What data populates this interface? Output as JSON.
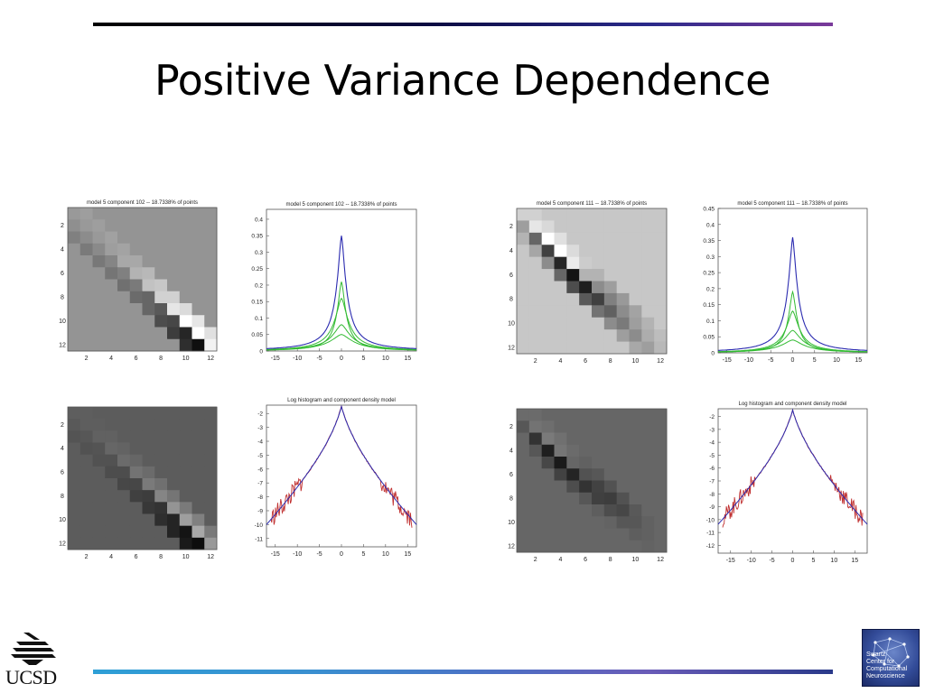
{
  "slide": {
    "title": "Positive Variance Dependence"
  },
  "panels": [
    {
      "matrix": {
        "title": "model 5 component 102 -- 18.7338% of points",
        "ticks": [
          "2",
          "4",
          "6",
          "8",
          "10",
          "12"
        ],
        "background": 0.58,
        "diagonal_pattern": [
          {
            "offset": -2,
            "levels": [
              0.5,
              0.48,
              0.47,
              0.46,
              0.44,
              0.42,
              0.4,
              0.3,
              0.24,
              0.18,
              0.1,
              0.05
            ]
          },
          {
            "offset": -1,
            "levels": [
              0.56,
              0.55,
              0.54,
              0.52,
              0.5,
              0.48,
              0.4,
              0.35,
              0.28,
              0.15,
              0.06,
              0.3
            ]
          },
          {
            "offset": 0,
            "levels": [
              0.6,
              0.6,
              0.6,
              0.62,
              0.66,
              0.7,
              0.76,
              0.82,
              0.9,
              1.0,
              1.0,
              0.95
            ]
          },
          {
            "offset": 1,
            "levels": [
              0.62,
              0.62,
              0.63,
              0.64,
              0.66,
              0.72,
              0.78,
              0.82,
              0.86,
              0.9,
              0.88
            ]
          }
        ]
      },
      "density": {
        "title": "model 5 component 102 -- 18.7338% of points",
        "xticks": [
          "-15",
          "-10",
          "-5",
          "0",
          "5",
          "10",
          "15"
        ],
        "yticks": [
          "0",
          "0.05",
          "0.1",
          "0.15",
          "0.2",
          "0.25",
          "0.3",
          "0.35",
          "0.4"
        ],
        "xlim": [
          -17,
          17
        ],
        "ylim": [
          0,
          0.43
        ],
        "peak": 0.35,
        "component_peaks": [
          0.21,
          0.16,
          0.08,
          0.05
        ]
      }
    },
    {
      "matrix": {
        "title": "model 5 component 111 -- 18.7338% of points",
        "ticks": [
          "2",
          "4",
          "6",
          "8",
          "10",
          "12"
        ],
        "background": 0.78,
        "diagonal_pattern": [
          {
            "offset": -2,
            "levels": [
              0.7,
              0.65,
              0.55,
              0.4,
              0.3,
              0.35,
              0.45,
              0.55,
              0.62,
              0.66,
              0.7,
              0.72
            ]
          },
          {
            "offset": -1,
            "levels": [
              0.62,
              0.4,
              0.25,
              0.15,
              0.08,
              0.12,
              0.25,
              0.38,
              0.48,
              0.55,
              0.62,
              0.68
            ]
          },
          {
            "offset": 0,
            "levels": [
              0.82,
              0.9,
              1.0,
              1.0,
              0.92,
              0.7,
              0.55,
              0.5,
              0.55,
              0.62,
              0.68,
              0.72
            ]
          },
          {
            "offset": 1,
            "levels": [
              0.82,
              0.85,
              0.88,
              0.86,
              0.8,
              0.7,
              0.62,
              0.6,
              0.64,
              0.7,
              0.74
            ]
          }
        ]
      },
      "density": {
        "title": "model 5 component 111 -- 18.7338% of points",
        "xticks": [
          "-15",
          "-10",
          "-5",
          "0",
          "5",
          "10",
          "15"
        ],
        "yticks": [
          "0",
          "0.05",
          "0.1",
          "0.15",
          "0.2",
          "0.25",
          "0.3",
          "0.35",
          "0.4",
          "0.45"
        ],
        "xlim": [
          -17,
          17
        ],
        "ylim": [
          0,
          0.45
        ],
        "peak": 0.36,
        "component_peaks": [
          0.19,
          0.13,
          0.07,
          0.04
        ]
      }
    },
    {
      "matrix": {
        "title": "",
        "ticks": [
          "2",
          "4",
          "6",
          "8",
          "10",
          "12"
        ],
        "background": 0.36,
        "diagonal_pattern": [
          {
            "offset": -2,
            "levels": [
              0.33,
              0.32,
              0.32,
              0.3,
              0.28,
              0.25,
              0.22,
              0.18,
              0.14,
              0.1,
              0.07,
              0.05
            ]
          },
          {
            "offset": -1,
            "levels": [
              0.35,
              0.34,
              0.33,
              0.32,
              0.3,
              0.28,
              0.24,
              0.2,
              0.14,
              0.08,
              0.05,
              0.25
            ]
          },
          {
            "offset": 0,
            "levels": [
              0.37,
              0.37,
              0.38,
              0.4,
              0.42,
              0.45,
              0.48,
              0.52,
              0.58,
              0.62,
              0.66,
              0.6
            ]
          },
          {
            "offset": 1,
            "levels": [
              0.37,
              0.37,
              0.38,
              0.39,
              0.4,
              0.42,
              0.44,
              0.46,
              0.48,
              0.5,
              0.48
            ]
          }
        ]
      },
      "density": {
        "title": "Log histogram and component density model",
        "xticks": [
          "-15",
          "-10",
          "-5",
          "0",
          "5",
          "10",
          "15"
        ],
        "yticks": [
          "-2",
          "-3",
          "-4",
          "-5",
          "-6",
          "-7",
          "-8",
          "-9",
          "-10",
          "-11"
        ],
        "xlim": [
          -17,
          17
        ],
        "ylim": [
          -11.6,
          -1.4
        ],
        "peak": -1.5
      }
    },
    {
      "matrix": {
        "title": "",
        "ticks": [
          "2",
          "4",
          "6",
          "8",
          "10",
          "12"
        ],
        "background": 0.4,
        "diagonal_pattern": [
          {
            "offset": -2,
            "levels": [
              0.4,
              0.34,
              0.28,
              0.26,
              0.3,
              0.34,
              0.37,
              0.39,
              0.4,
              0.4,
              0.4,
              0.4
            ]
          },
          {
            "offset": -1,
            "levels": [
              0.34,
              0.2,
              0.12,
              0.1,
              0.14,
              0.2,
              0.25,
              0.3,
              0.34,
              0.37,
              0.39,
              0.4
            ]
          },
          {
            "offset": 0,
            "levels": [
              0.42,
              0.45,
              0.48,
              0.46,
              0.4,
              0.32,
              0.26,
              0.24,
              0.28,
              0.34,
              0.38,
              0.4
            ]
          },
          {
            "offset": 1,
            "levels": [
              0.42,
              0.43,
              0.44,
              0.42,
              0.38,
              0.34,
              0.32,
              0.32,
              0.35,
              0.38,
              0.4
            ]
          }
        ]
      },
      "density": {
        "title": "Log histogram and component density model",
        "xticks": [
          "-15",
          "-10",
          "-5",
          "0",
          "5",
          "10",
          "15"
        ],
        "yticks": [
          "-2",
          "-3",
          "-4",
          "-5",
          "-6",
          "-7",
          "-8",
          "-9",
          "-10",
          "-11",
          "-12"
        ],
        "xlim": [
          -18,
          18
        ],
        "ylim": [
          -12.6,
          -1.4
        ],
        "peak": -1.5
      }
    }
  ],
  "logos": {
    "ucsd": "UCSD",
    "sccn_lines": [
      "Swartz",
      "Center for",
      "Computational",
      "Neuroscience"
    ]
  },
  "colors": {
    "model_curve": "#2b2bb0",
    "data_curve": "#c03030",
    "component_curves": "#33bb33"
  }
}
